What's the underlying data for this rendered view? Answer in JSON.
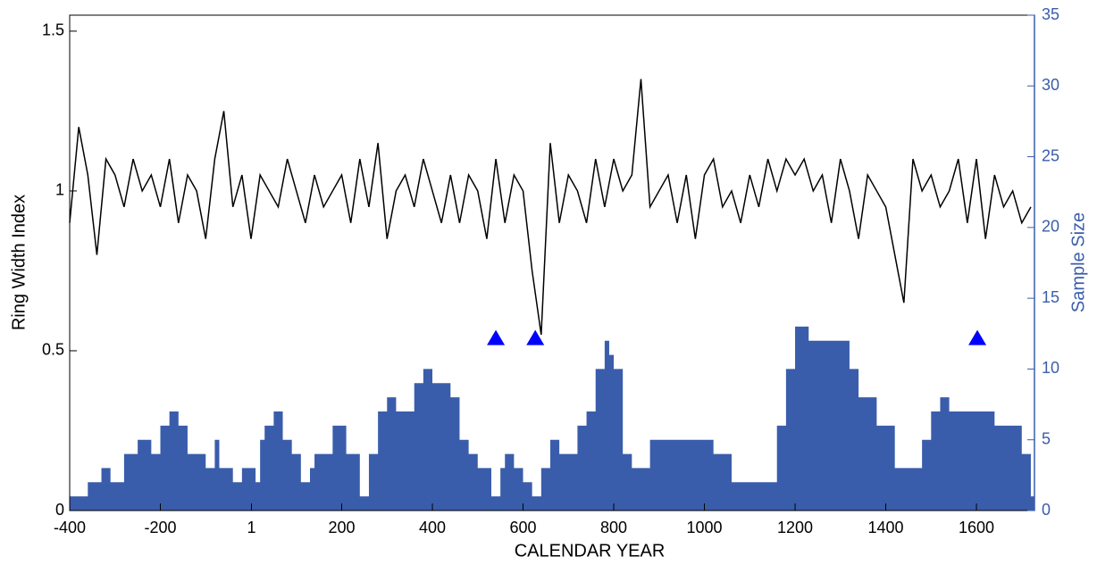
{
  "chart_data": {
    "type": "line",
    "xlabel": "CALENDAR YEAR",
    "ylabel": "Ring Width Index",
    "y2label": "Sample Size",
    "xlim": [
      -400,
      1728
    ],
    "ylim": [
      0,
      1.55
    ],
    "y2lim": [
      0,
      35
    ],
    "xticks": [
      -400,
      -200,
      1,
      200,
      400,
      600,
      800,
      1000,
      1200,
      1400,
      1600
    ],
    "yticks": [
      0,
      0.5,
      1,
      1.5
    ],
    "y2ticks": [
      0,
      5,
      10,
      15,
      20,
      25,
      30,
      35
    ],
    "series": [
      {
        "type": "step-area",
        "axis": "y2",
        "color": "#3a5dab",
        "x": [
          -400,
          -360,
          -330,
          -310,
          -280,
          -250,
          -220,
          -200,
          -180,
          -160,
          -140,
          -100,
          -80,
          -70,
          -40,
          -20,
          10,
          20,
          30,
          50,
          70,
          90,
          110,
          130,
          140,
          160,
          180,
          210,
          240,
          260,
          280,
          300,
          320,
          360,
          380,
          400,
          440,
          460,
          480,
          500,
          530,
          550,
          560,
          580,
          600,
          620,
          640,
          660,
          680,
          720,
          740,
          760,
          780,
          790,
          800,
          820,
          840,
          880,
          1000,
          1020,
          1060,
          1100,
          1160,
          1180,
          1200,
          1230,
          1320,
          1340,
          1380,
          1420,
          1450,
          1480,
          1500,
          1520,
          1540,
          1600,
          1640,
          1700,
          1720
        ],
        "values": [
          1,
          2,
          3,
          2,
          4,
          5,
          4,
          6,
          7,
          6,
          4,
          3,
          5,
          3,
          2,
          3,
          2,
          5,
          6,
          7,
          5,
          4,
          2,
          3,
          4,
          4,
          6,
          4,
          1,
          4,
          7,
          8,
          7,
          9,
          10,
          9,
          8,
          5,
          4,
          3,
          1,
          3,
          4,
          3,
          2,
          1,
          3,
          5,
          4,
          6,
          7,
          10,
          12,
          11,
          10,
          4,
          3,
          5,
          5,
          4,
          2,
          2,
          6,
          10,
          13,
          12,
          10,
          8,
          6,
          3,
          3,
          5,
          7,
          8,
          7,
          7,
          6,
          4,
          1
        ]
      },
      {
        "type": "line",
        "color": "#000000",
        "x": [
          -400,
          -380,
          -360,
          -340,
          -320,
          -300,
          -280,
          -260,
          -240,
          -220,
          -200,
          -180,
          -160,
          -140,
          -120,
          -100,
          -80,
          -60,
          -40,
          -20,
          0,
          20,
          40,
          60,
          80,
          100,
          120,
          140,
          160,
          180,
          200,
          220,
          240,
          260,
          280,
          300,
          320,
          340,
          360,
          380,
          400,
          420,
          440,
          460,
          480,
          500,
          520,
          540,
          560,
          580,
          600,
          620,
          640,
          660,
          680,
          700,
          720,
          740,
          760,
          780,
          800,
          820,
          840,
          860,
          880,
          900,
          920,
          940,
          960,
          980,
          1000,
          1020,
          1040,
          1060,
          1080,
          1100,
          1120,
          1140,
          1160,
          1180,
          1200,
          1220,
          1240,
          1260,
          1280,
          1300,
          1320,
          1340,
          1360,
          1380,
          1400,
          1420,
          1440,
          1460,
          1480,
          1500,
          1520,
          1540,
          1560,
          1580,
          1600,
          1620,
          1640,
          1660,
          1680,
          1700,
          1720
        ],
        "values": [
          0.9,
          1.2,
          1.05,
          0.8,
          1.1,
          1.05,
          0.95,
          1.1,
          1.0,
          1.05,
          0.95,
          1.1,
          0.9,
          1.05,
          1.0,
          0.85,
          1.1,
          1.25,
          0.95,
          1.05,
          0.85,
          1.05,
          1.0,
          0.95,
          1.1,
          1.0,
          0.9,
          1.05,
          0.95,
          1.0,
          1.05,
          0.9,
          1.1,
          0.95,
          1.15,
          0.85,
          1.0,
          1.05,
          0.95,
          1.1,
          1.0,
          0.9,
          1.05,
          0.9,
          1.05,
          1.0,
          0.85,
          1.1,
          0.9,
          1.05,
          1.0,
          0.75,
          0.55,
          1.15,
          0.9,
          1.05,
          1.0,
          0.9,
          1.1,
          0.95,
          1.1,
          1.0,
          1.05,
          1.35,
          0.95,
          1.0,
          1.05,
          0.9,
          1.05,
          0.85,
          1.05,
          1.1,
          0.95,
          1.0,
          0.9,
          1.05,
          0.95,
          1.1,
          1.0,
          1.1,
          1.05,
          1.1,
          1.0,
          1.05,
          0.9,
          1.1,
          1.0,
          0.85,
          1.05,
          1.0,
          0.95,
          0.8,
          0.65,
          1.1,
          1.0,
          1.05,
          0.95,
          1.0,
          1.1,
          0.9,
          1.1,
          0.85,
          1.05,
          0.95,
          1.0,
          0.9,
          0.95
        ]
      }
    ],
    "markers": {
      "color": "#0000ff",
      "x": [
        540,
        627,
        1602
      ],
      "y": [
        0.54,
        0.54,
        0.54
      ]
    }
  }
}
